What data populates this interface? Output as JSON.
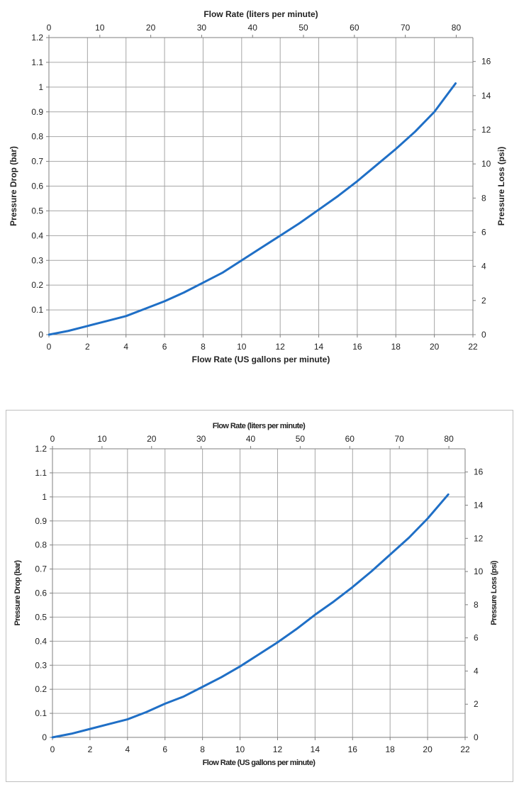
{
  "chart_data": [
    {
      "type": "line",
      "title": "",
      "xlabel": "Flow Rate (US gallons per minute)",
      "xlabel_top": "Flow Rate (liters per minute)",
      "ylabel": "Pressure Drop (bar)",
      "ylabel_right": "Pressure Loss (psi)",
      "xlim": [
        0,
        22
      ],
      "ylim": [
        0,
        1.2
      ],
      "xlim_top": [
        0,
        83.28
      ],
      "ylim_right": [
        0,
        17.4
      ],
      "x_ticks": [
        "0",
        "2",
        "4",
        "6",
        "8",
        "10",
        "12",
        "14",
        "16",
        "18",
        "20",
        "22"
      ],
      "x_top_ticks": [
        "0",
        "10",
        "20",
        "30",
        "40",
        "50",
        "60",
        "70",
        "80"
      ],
      "y_ticks": [
        "0",
        "0.1",
        "0.2",
        "0.3",
        "0.4",
        "0.5",
        "0.6",
        "0.7",
        "0.8",
        "0.9",
        "1",
        "1.1",
        "1.2"
      ],
      "y_right_ticks": [
        "0",
        "2",
        "4",
        "6",
        "8",
        "10",
        "12",
        "14",
        "16"
      ],
      "grid": true,
      "line_color": "#1f6fc6",
      "series": [
        {
          "x": [
            0,
            1,
            2,
            3,
            4,
            5,
            6,
            7,
            8,
            9,
            10,
            11,
            12,
            13,
            14,
            15,
            16,
            17,
            18,
            19,
            20,
            21.1
          ],
          "values": [
            0,
            0.015,
            0.035,
            0.055,
            0.075,
            0.105,
            0.135,
            0.17,
            0.21,
            0.25,
            0.3,
            0.35,
            0.4,
            0.45,
            0.505,
            0.56,
            0.62,
            0.685,
            0.75,
            0.82,
            0.9,
            1.015
          ]
        }
      ]
    },
    {
      "type": "line",
      "title": "",
      "xlabel": "Flow Rate (US gallons per minute)",
      "xlabel_top": "Flow Rate (liters per minute)",
      "ylabel": "Pressure Drop (bar)",
      "ylabel_right": "Pressure Loss (psi)",
      "xlim": [
        0,
        22
      ],
      "ylim": [
        0,
        1.2
      ],
      "xlim_top": [
        0,
        83.28
      ],
      "ylim_right": [
        0,
        17.4
      ],
      "x_ticks": [
        "0",
        "2",
        "4",
        "6",
        "8",
        "10",
        "12",
        "14",
        "16",
        "18",
        "20",
        "22"
      ],
      "x_top_ticks": [
        "0",
        "10",
        "20",
        "30",
        "40",
        "50",
        "60",
        "70",
        "80"
      ],
      "y_ticks": [
        "0",
        "0.1",
        "0.2",
        "0.3",
        "0.4",
        "0.5",
        "0.6",
        "0.7",
        "0.8",
        "0.9",
        "1",
        "1.1",
        "1.2"
      ],
      "y_right_ticks": [
        "0",
        "2",
        "4",
        "6",
        "8",
        "10",
        "12",
        "14",
        "16"
      ],
      "grid": true,
      "line_color": "#1f6fc6",
      "series": [
        {
          "x": [
            0,
            1,
            2,
            3,
            4,
            5,
            6,
            7,
            8,
            9,
            10,
            11,
            12,
            13,
            14,
            15,
            16,
            17,
            18,
            19,
            20,
            21.1
          ],
          "values": [
            0,
            0.015,
            0.035,
            0.055,
            0.075,
            0.105,
            0.14,
            0.17,
            0.21,
            0.25,
            0.295,
            0.345,
            0.395,
            0.45,
            0.51,
            0.565,
            0.625,
            0.69,
            0.76,
            0.83,
            0.91,
            1.01
          ]
        }
      ]
    }
  ]
}
